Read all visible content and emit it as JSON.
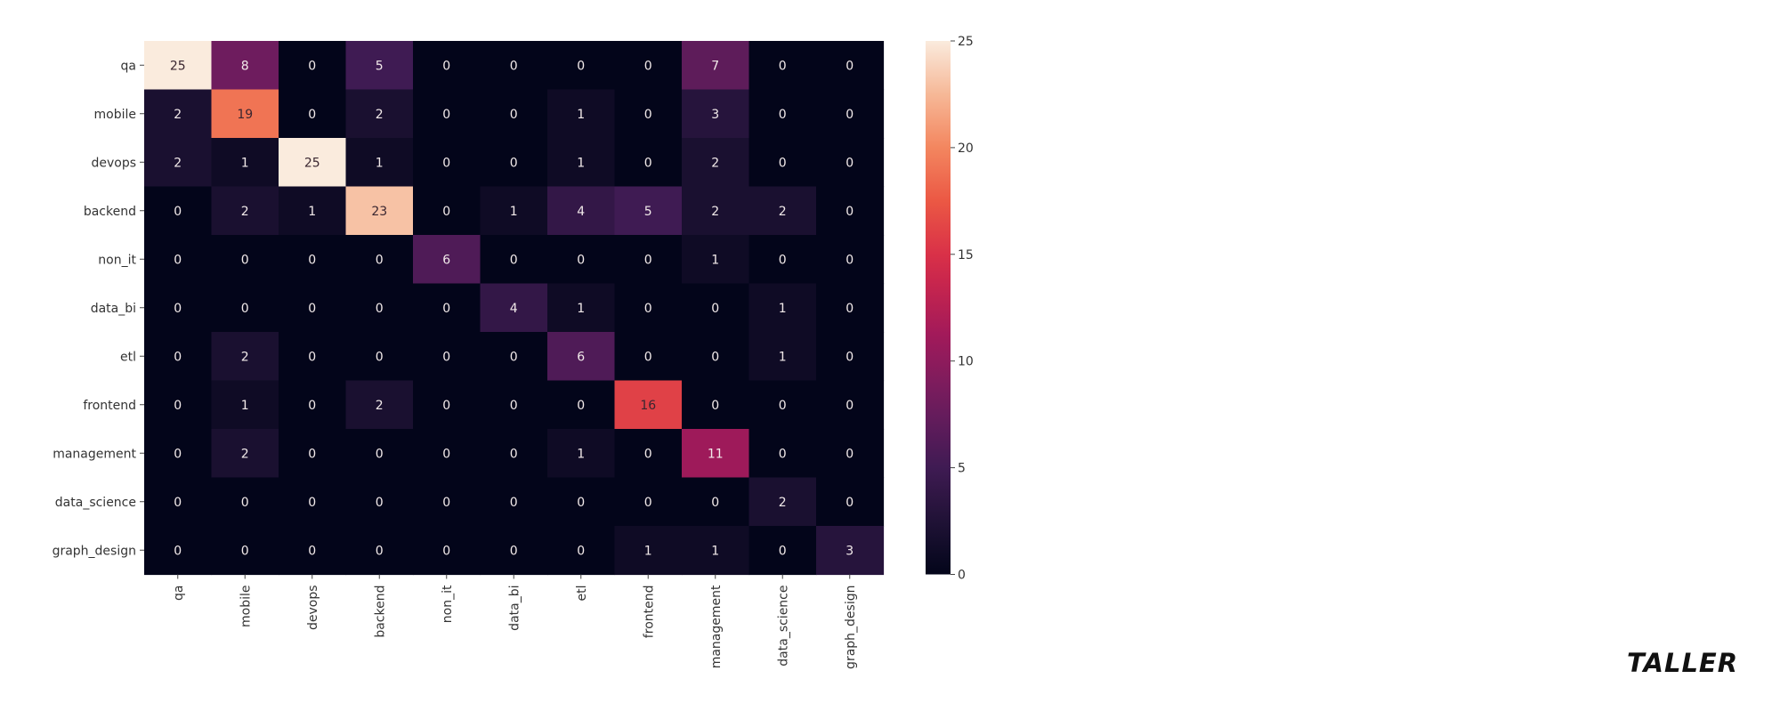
{
  "chart_data": {
    "type": "heatmap",
    "title": "",
    "xlabel": "",
    "ylabel": "",
    "row_labels": [
      "qa",
      "mobile",
      "devops",
      "backend",
      "non_it",
      "data_bi",
      "etl",
      "frontend",
      "management",
      "data_science",
      "graph_design"
    ],
    "col_labels": [
      "qa",
      "mobile",
      "devops",
      "backend",
      "non_it",
      "data_bi",
      "etl",
      "frontend",
      "management",
      "data_science",
      "graph_design"
    ],
    "values": [
      [
        25,
        8,
        0,
        5,
        0,
        0,
        0,
        0,
        7,
        0,
        0
      ],
      [
        2,
        19,
        0,
        2,
        0,
        0,
        1,
        0,
        3,
        0,
        0
      ],
      [
        2,
        1,
        25,
        1,
        0,
        0,
        1,
        0,
        2,
        0,
        0
      ],
      [
        0,
        2,
        1,
        23,
        0,
        1,
        4,
        5,
        2,
        2,
        0
      ],
      [
        0,
        0,
        0,
        0,
        6,
        0,
        0,
        0,
        1,
        0,
        0
      ],
      [
        0,
        0,
        0,
        0,
        0,
        4,
        1,
        0,
        0,
        1,
        0
      ],
      [
        0,
        2,
        0,
        0,
        0,
        0,
        6,
        0,
        0,
        1,
        0
      ],
      [
        0,
        1,
        0,
        2,
        0,
        0,
        0,
        16,
        0,
        0,
        0
      ],
      [
        0,
        2,
        0,
        0,
        0,
        0,
        1,
        0,
        11,
        0,
        0
      ],
      [
        0,
        0,
        0,
        0,
        0,
        0,
        0,
        0,
        0,
        2,
        0
      ],
      [
        0,
        0,
        0,
        0,
        0,
        0,
        0,
        1,
        1,
        0,
        3
      ]
    ],
    "colorbar": {
      "min": 0,
      "max": 25,
      "ticks": [
        0,
        5,
        10,
        15,
        20,
        25
      ],
      "colormap": "rocket"
    },
    "grid": false,
    "legend": "colorbar-right"
  },
  "brand": {
    "text": "TALLER"
  }
}
